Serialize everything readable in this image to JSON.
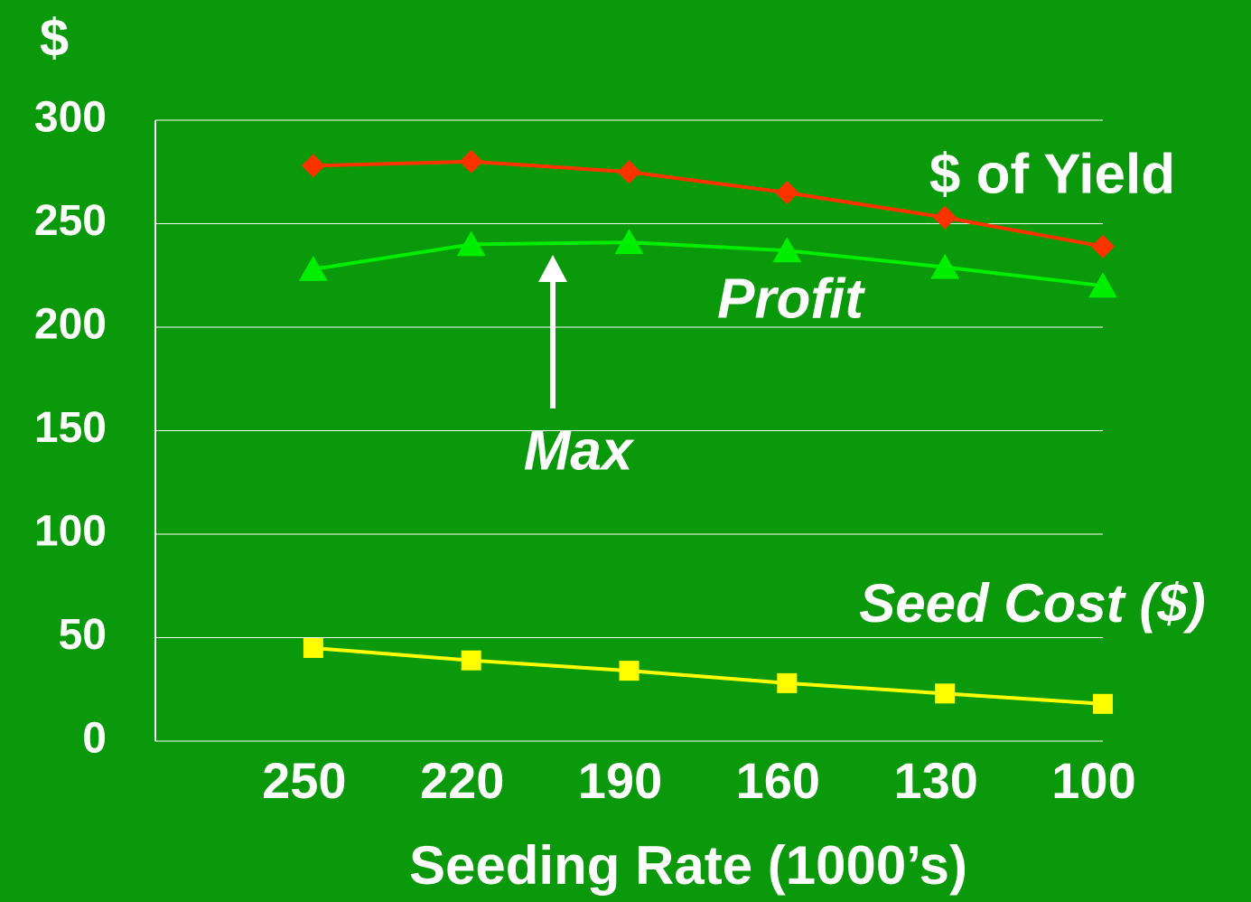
{
  "chart_data": {
    "type": "line",
    "y_axis_label": "$",
    "x_axis_label": "Seeding Rate (1000’s)",
    "categories": [
      "250",
      "220",
      "190",
      "160",
      "130",
      "100"
    ],
    "series": [
      {
        "name": "$ of Yield",
        "color": "#ff3300",
        "marker": "diamond",
        "values": [
          278,
          280,
          275,
          265,
          253,
          239
        ]
      },
      {
        "name": "Profit",
        "color": "#00ee00",
        "marker": "triangle",
        "values": [
          228,
          240,
          241,
          237,
          229,
          220
        ]
      },
      {
        "name": "Seed Cost ($)",
        "color": "#ffff00",
        "marker": "square",
        "values": [
          45,
          39,
          34,
          28,
          23,
          18
        ]
      }
    ],
    "annotations": [
      "Max"
    ],
    "ylim": [
      0,
      300
    ],
    "yticks": [
      0,
      50,
      100,
      150,
      200,
      250,
      300
    ],
    "grid": true
  }
}
